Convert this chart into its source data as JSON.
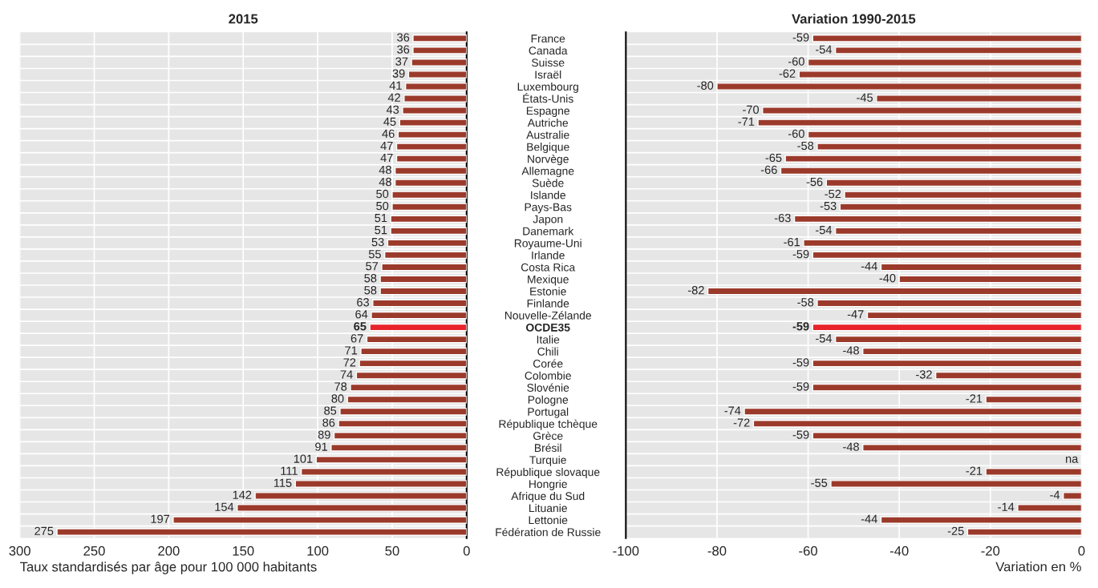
{
  "chart_data": [
    {
      "type": "bar",
      "orientation": "horizontal",
      "title": "2015",
      "xlabel": "Taux standardisés par âge pour 100 000 habitants",
      "categories": [
        "France",
        "Canada",
        "Suisse",
        "Israël",
        "Luxembourg",
        "États-Unis",
        "Espagne",
        "Autriche",
        "Australie",
        "Belgique",
        "Norvège",
        "Allemagne",
        "Suède",
        "Islande",
        "Pays-Bas",
        "Japon",
        "Danemark",
        "Royaume-Uni",
        "Irlande",
        "Costa Rica",
        "Mexique",
        "Estonie",
        "Finlande",
        "Nouvelle-Zélande",
        "OCDE35",
        "Italie",
        "Chili",
        "Corée",
        "Colombie",
        "Slovénie",
        "Pologne",
        "Portugal",
        "République tchèque",
        "Grèce",
        "Brésil",
        "Turquie",
        "République slovaque",
        "Hongrie",
        "Afrique du Sud",
        "Lituanie",
        "Lettonie",
        "Fédération de Russie"
      ],
      "values": [
        36,
        36,
        37,
        39,
        41,
        42,
        43,
        45,
        46,
        47,
        47,
        48,
        48,
        50,
        50,
        51,
        51,
        53,
        55,
        57,
        58,
        58,
        63,
        64,
        65,
        67,
        71,
        72,
        74,
        78,
        80,
        85,
        86,
        89,
        91,
        101,
        111,
        115,
        142,
        154,
        197,
        275
      ],
      "colors": [
        "#9b3a2b",
        "#9b3a2b",
        "#9b3a2b",
        "#9b3a2b",
        "#9b3a2b",
        "#9b3a2b",
        "#9b3a2b",
        "#9b3a2b",
        "#9b3a2b",
        "#9b3a2b",
        "#9b3a2b",
        "#9b3a2b",
        "#9b3a2b",
        "#9b3a2b",
        "#9b3a2b",
        "#9b3a2b",
        "#9b3a2b",
        "#9b3a2b",
        "#9b3a2b",
        "#9b3a2b",
        "#9b3a2b",
        "#9b3a2b",
        "#9b3a2b",
        "#9b3a2b",
        "#e8232b",
        "#9b3a2b",
        "#9b3a2b",
        "#9b3a2b",
        "#9b3a2b",
        "#9b3a2b",
        "#9b3a2b",
        "#9b3a2b",
        "#9b3a2b",
        "#9b3a2b",
        "#9b3a2b",
        "#9b3a2b",
        "#9b3a2b",
        "#9b3a2b",
        "#9b3a2b",
        "#9b3a2b",
        "#9b3a2b",
        "#9b3a2b"
      ],
      "xlim": [
        300,
        0
      ],
      "xticks": [
        300,
        250,
        200,
        150,
        100,
        50,
        0
      ],
      "grid": "x",
      "data_labels": true
    },
    {
      "type": "bar",
      "orientation": "horizontal",
      "title": "Variation 1990-2015",
      "xlabel": "Variation en %",
      "categories": [
        null,
        null,
        null,
        null,
        null,
        null,
        null,
        null,
        null,
        null,
        null,
        null,
        null,
        null,
        null,
        null,
        null,
        null,
        null,
        null,
        null,
        null,
        null,
        null,
        null,
        null,
        null,
        null,
        null,
        null,
        null,
        null,
        null,
        null,
        null,
        null,
        null,
        null,
        null,
        null,
        null,
        null
      ],
      "values": [
        -59,
        -54,
        -60,
        -62,
        -80,
        -45,
        -70,
        -71,
        -60,
        -58,
        -65,
        -66,
        -56,
        -52,
        -53,
        -63,
        -54,
        -61,
        -59,
        -44,
        -40,
        -82,
        -58,
        -47,
        -59,
        -54,
        -48,
        -59,
        -32,
        -59,
        -21,
        -74,
        -72,
        -59,
        -48,
        null,
        -21,
        -55,
        -4,
        -14,
        -44,
        -25
      ],
      "value_labels": [
        "-59",
        "-54",
        "-60",
        "-62",
        "-80",
        "-45",
        "-70",
        "-71",
        "-60",
        "-58",
        "-65",
        "-66",
        "-56",
        "-52",
        "-53",
        "-63",
        "-54",
        "-61",
        "-59",
        "-44",
        "-40",
        "-82",
        "-58",
        "-47",
        "-59",
        "-54",
        "-48",
        "-59",
        "-32",
        "-59",
        "-21",
        "-74",
        "-72",
        "-59",
        "-48",
        "na",
        "-21",
        "-55",
        "-4",
        "-14",
        "-44",
        "-25"
      ],
      "colors": [
        "#9b3a2b",
        "#9b3a2b",
        "#9b3a2b",
        "#9b3a2b",
        "#9b3a2b",
        "#9b3a2b",
        "#9b3a2b",
        "#9b3a2b",
        "#9b3a2b",
        "#9b3a2b",
        "#9b3a2b",
        "#9b3a2b",
        "#9b3a2b",
        "#9b3a2b",
        "#9b3a2b",
        "#9b3a2b",
        "#9b3a2b",
        "#9b3a2b",
        "#9b3a2b",
        "#9b3a2b",
        "#9b3a2b",
        "#9b3a2b",
        "#9b3a2b",
        "#9b3a2b",
        "#e8232b",
        "#9b3a2b",
        "#9b3a2b",
        "#9b3a2b",
        "#9b3a2b",
        "#9b3a2b",
        "#9b3a2b",
        "#9b3a2b",
        "#9b3a2b",
        "#9b3a2b",
        "#9b3a2b",
        "#9b3a2b",
        "#9b3a2b",
        "#9b3a2b",
        "#9b3a2b",
        "#9b3a2b",
        "#9b3a2b",
        "#9b3a2b"
      ],
      "xlim": [
        -100,
        0
      ],
      "xticks": [
        -100,
        -80,
        -60,
        -40,
        -20,
        0
      ],
      "grid": "x"
    }
  ]
}
